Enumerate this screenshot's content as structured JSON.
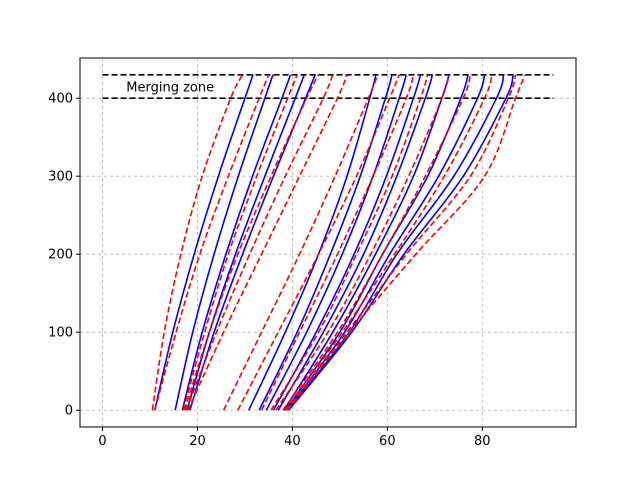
{
  "chart_data": {
    "type": "line",
    "title": "",
    "xlabel": "",
    "ylabel": "",
    "xlim": [
      -4.75,
      99.75
    ],
    "ylim": [
      -21.5,
      451.5
    ],
    "xticks": [
      0,
      20,
      40,
      60,
      80
    ],
    "yticks": [
      0,
      100,
      200,
      300,
      400
    ],
    "grid": true,
    "grid_style": "dashed",
    "colors": {
      "solid": "#0000ff",
      "dashed": "#ff0000",
      "zone": "#000000",
      "grid": "#b0b0b0"
    },
    "merging_zone": {
      "label": "Merging zone",
      "y_lower": 400,
      "y_upper": 430,
      "x_range": [
        0,
        95
      ]
    },
    "series": [
      {
        "style": "solid",
        "y": [
          0,
          100,
          200,
          300,
          400,
          430
        ],
        "x": [
          11.0,
          14.8,
          19.3,
          24.4,
          30.0,
          31.7
        ]
      },
      {
        "style": "solid",
        "y": [
          0,
          100,
          200,
          300,
          400,
          430
        ],
        "x": [
          15.3,
          19.0,
          23.5,
          28.6,
          34.2,
          35.9
        ]
      },
      {
        "style": "solid",
        "y": [
          0,
          100,
          200,
          300,
          400,
          430
        ],
        "x": [
          16.8,
          21.0,
          26.0,
          31.6,
          37.8,
          39.6
        ]
      },
      {
        "style": "solid",
        "y": [
          0,
          100,
          200,
          300,
          400,
          430
        ],
        "x": [
          17.8,
          22.5,
          28.0,
          34.2,
          40.6,
          42.5
        ]
      },
      {
        "style": "solid",
        "y": [
          0,
          100,
          200,
          300,
          400,
          430
        ],
        "x": [
          18.4,
          23.5,
          29.5,
          36.0,
          42.8,
          44.8
        ]
      },
      {
        "style": "solid",
        "y": [
          0,
          100,
          200,
          300,
          400,
          430
        ],
        "x": [
          30.8,
          38.5,
          45.5,
          51.5,
          56.3,
          57.6
        ]
      },
      {
        "style": "solid",
        "y": [
          0,
          100,
          200,
          300,
          400,
          430
        ],
        "x": [
          33.0,
          41.0,
          48.0,
          54.3,
          59.6,
          61.0
        ]
      },
      {
        "style": "solid",
        "y": [
          0,
          100,
          200,
          300,
          400,
          430
        ],
        "x": [
          34.5,
          43.0,
          50.5,
          57.0,
          62.5,
          64.0
        ]
      },
      {
        "style": "solid",
        "y": [
          0,
          100,
          200,
          300,
          400,
          430
        ],
        "x": [
          36.0,
          45.0,
          53.0,
          59.8,
          65.5,
          67.0
        ]
      },
      {
        "style": "solid",
        "y": [
          0,
          100,
          200,
          300,
          400,
          430
        ],
        "x": [
          37.0,
          46.5,
          55.0,
          62.0,
          68.0,
          69.5
        ]
      },
      {
        "style": "solid",
        "y": [
          0,
          100,
          200,
          300,
          400,
          430
        ],
        "x": [
          38.2,
          48.5,
          57.5,
          65.5,
          71.5,
          73.0
        ]
      },
      {
        "style": "solid",
        "y": [
          0,
          100,
          200,
          300,
          400,
          430
        ],
        "x": [
          38.5,
          50.0,
          59.0,
          68.5,
          75.5,
          77.0
        ]
      },
      {
        "style": "solid",
        "y": [
          0,
          100,
          200,
          300,
          400,
          430
        ],
        "x": [
          38.8,
          51.0,
          60.5,
          70.8,
          79.0,
          80.5
        ]
      },
      {
        "style": "solid",
        "y": [
          0,
          100,
          200,
          300,
          400,
          430
        ],
        "x": [
          39.0,
          52.0,
          62.0,
          74.0,
          83.0,
          84.5
        ]
      },
      {
        "style": "solid",
        "y": [
          0,
          100,
          200,
          300,
          400,
          430
        ],
        "x": [
          39.2,
          52.5,
          63.5,
          76.0,
          85.0,
          86.5
        ]
      },
      {
        "style": "dashed",
        "y": [
          0,
          100,
          200,
          300,
          400,
          430
        ],
        "x": [
          10.5,
          13.0,
          16.5,
          21.0,
          27.0,
          29.5
        ]
      },
      {
        "style": "dashed",
        "y": [
          0,
          100,
          200,
          300,
          400,
          430
        ],
        "x": [
          11.0,
          15.5,
          20.5,
          26.5,
          33.0,
          35.0
        ]
      },
      {
        "style": "dashed",
        "y": [
          0,
          100,
          200,
          300,
          400,
          430
        ],
        "x": [
          17.0,
          21.5,
          26.5,
          32.5,
          39.0,
          41.0
        ]
      },
      {
        "style": "dashed",
        "y": [
          0,
          100,
          200,
          300,
          400,
          430
        ],
        "x": [
          17.3,
          22.5,
          28.5,
          35.5,
          43.0,
          45.5
        ]
      },
      {
        "style": "dashed",
        "y": [
          0,
          100,
          200,
          300,
          400,
          430
        ],
        "x": [
          17.6,
          24.0,
          31.0,
          38.5,
          46.5,
          48.5
        ]
      },
      {
        "style": "dashed",
        "y": [
          0,
          100,
          200,
          300,
          400,
          430
        ],
        "x": [
          18.0,
          25.5,
          33.5,
          41.5,
          49.5,
          51.5
        ]
      },
      {
        "style": "dashed",
        "y": [
          0,
          100,
          200,
          300,
          400,
          430
        ],
        "x": [
          25.5,
          33.5,
          41.5,
          49.0,
          56.0,
          58.0
        ]
      },
      {
        "style": "dashed",
        "y": [
          0,
          100,
          200,
          300,
          400,
          430
        ],
        "x": [
          28.5,
          37.0,
          45.5,
          53.5,
          60.5,
          62.5
        ]
      },
      {
        "style": "dashed",
        "y": [
          0,
          100,
          200,
          300,
          400,
          430
        ],
        "x": [
          33.5,
          41.5,
          49.5,
          57.0,
          64.0,
          65.5
        ]
      },
      {
        "style": "dashed",
        "y": [
          0,
          100,
          200,
          300,
          400,
          430
        ],
        "x": [
          35.5,
          45.5,
          53.5,
          61.0,
          67.0,
          68.5
        ]
      },
      {
        "style": "dashed",
        "y": [
          0,
          100,
          200,
          300,
          400,
          430
        ],
        "x": [
          36.5,
          47.5,
          56.5,
          64.5,
          71.5,
          73.0
        ]
      },
      {
        "style": "dashed",
        "y": [
          0,
          100,
          200,
          300,
          400,
          430
        ],
        "x": [
          38.0,
          49.5,
          59.0,
          68.0,
          76.0,
          77.5
        ]
      },
      {
        "style": "dashed",
        "y": [
          0,
          100,
          200,
          300,
          400,
          430
        ],
        "x": [
          38.5,
          50.5,
          61.5,
          72.0,
          80.5,
          82.0
        ]
      },
      {
        "style": "dashed",
        "y": [
          0,
          100,
          200,
          300,
          400,
          430
        ],
        "x": [
          38.8,
          51.5,
          64.0,
          77.5,
          85.5,
          87.0
        ]
      },
      {
        "style": "dashed",
        "y": [
          0,
          100,
          200,
          300,
          400,
          430
        ],
        "x": [
          39.0,
          52.0,
          66.0,
          80.5,
          87.0,
          89.0
        ]
      }
    ]
  }
}
